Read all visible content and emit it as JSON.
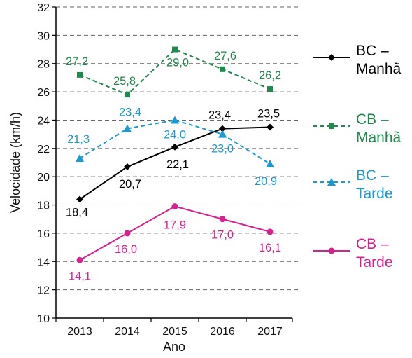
{
  "chart_data": {
    "type": "line",
    "title": "",
    "xlabel": "Ano",
    "ylabel": "Velocidade (km/h)",
    "x": [
      "2013",
      "2014",
      "2015",
      "2016",
      "2017"
    ],
    "ylim": [
      10,
      32
    ],
    "yticks": [
      "10",
      "12",
      "14",
      "16",
      "18",
      "20",
      "22",
      "24",
      "26",
      "28",
      "30",
      "32"
    ],
    "grid": "horizontal dashed",
    "legend_position": "right",
    "series": [
      {
        "key": "bc_manha",
        "legend_line1": "BC –",
        "legend_line2": "Manhã",
        "color": "#000000",
        "dash": "solid",
        "marker": "diamond",
        "values": [
          18.4,
          20.7,
          22.1,
          23.4,
          23.5
        ],
        "labels": [
          "18,4",
          "20,7",
          "22,1",
          "23,4",
          "23,5"
        ]
      },
      {
        "key": "cb_manha",
        "legend_line1": "CB –",
        "legend_line2": "Manhã",
        "color": "#1e8a4c",
        "dash": "dashed",
        "marker": "square",
        "values": [
          27.2,
          25.8,
          29.0,
          27.6,
          26.2
        ],
        "labels": [
          "27,2",
          "25,8",
          "29,0",
          "27,6",
          "26,2"
        ]
      },
      {
        "key": "bc_tarde",
        "legend_line1": "BC –",
        "legend_line2": "Tarde",
        "color": "#1a9ad0",
        "dash": "dashed",
        "marker": "triangle",
        "values": [
          21.3,
          23.4,
          24.0,
          23.0,
          20.9
        ],
        "labels": [
          "21,3",
          "23,4",
          "24,0",
          "23,0",
          "20,9"
        ]
      },
      {
        "key": "cb_tarde",
        "legend_line1": "CB –",
        "legend_line2": "Tarde",
        "color": "#d6228e",
        "dash": "solid",
        "marker": "circle",
        "values": [
          14.1,
          16.0,
          17.9,
          17.0,
          16.1
        ],
        "labels": [
          "14,1",
          "16,0",
          "17,9",
          "17,0",
          "16,1"
        ]
      }
    ]
  }
}
